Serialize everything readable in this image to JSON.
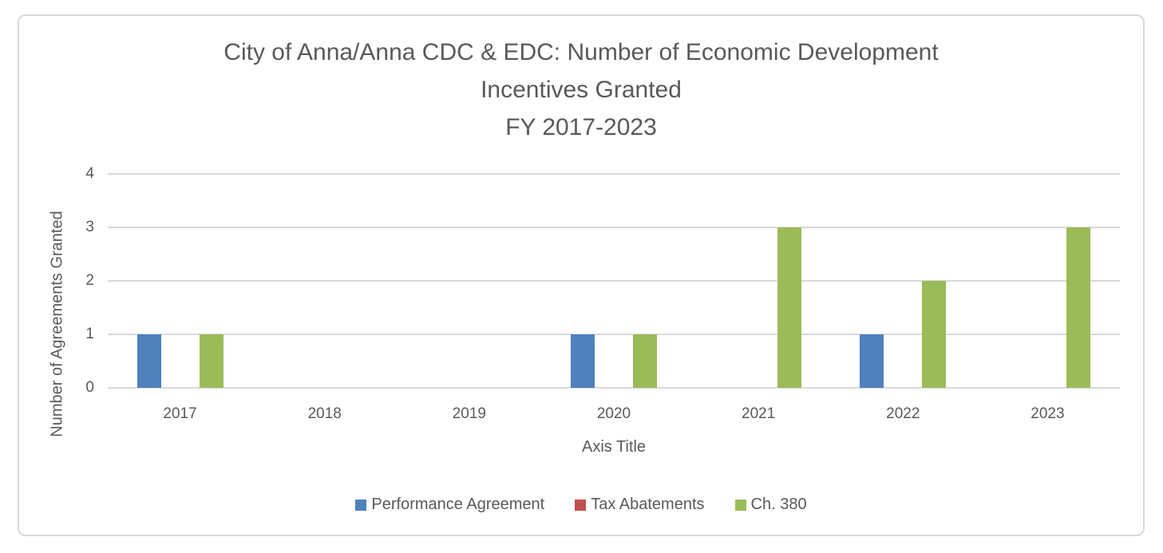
{
  "chart_data": {
    "type": "bar",
    "title": "City of Anna/Anna CDC & EDC: Number of Economic Development Incentives Granted FY 2017-2023",
    "title_lines": [
      "City of Anna/Anna CDC & EDC: Number of Economic Development",
      "Incentives Granted",
      "FY 2017-2023"
    ],
    "categories": [
      "2017",
      "2018",
      "2019",
      "2020",
      "2021",
      "2022",
      "2023"
    ],
    "series": [
      {
        "name": "Performance Agreement",
        "color": "#4F81BD",
        "values": [
          1,
          0,
          0,
          1,
          0,
          1,
          0
        ]
      },
      {
        "name": "Tax Abatements",
        "color": "#C0504D",
        "values": [
          0,
          0,
          0,
          0,
          0,
          0,
          0
        ]
      },
      {
        "name": "Ch. 380",
        "color": "#9BBB59",
        "values": [
          1,
          0,
          0,
          1,
          3,
          2,
          3
        ]
      }
    ],
    "xlabel": "Axis Title",
    "ylabel": "Number of Agreements Granted",
    "ylim": [
      0,
      4
    ],
    "yticks": [
      0,
      1,
      2,
      3,
      4
    ],
    "grid": "horizontal-gridlines-on",
    "legend_position": "bottom",
    "colors": {
      "text": "#595959",
      "gridline": "#D9D9D9",
      "border": "#D9D9D9",
      "background": "#FFFFFF"
    }
  }
}
